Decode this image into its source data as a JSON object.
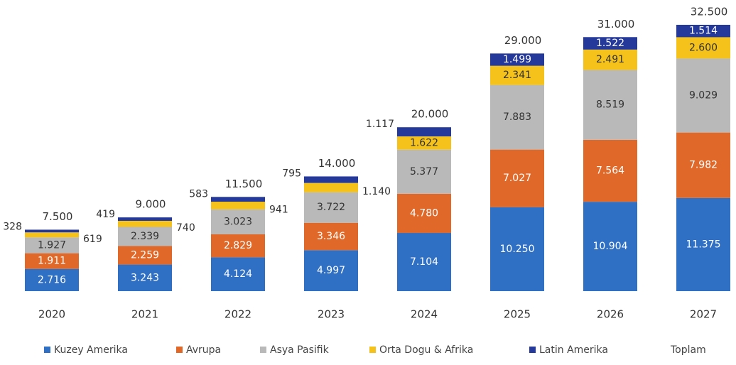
{
  "chart_data": {
    "type": "stacked_bar",
    "categories": [
      "2020",
      "2021",
      "2022",
      "2023",
      "2024",
      "2025",
      "2026",
      "2027"
    ],
    "series": [
      {
        "name": "Kuzey Amerika",
        "color": "#2f6fc4",
        "values": [
          2716,
          3243,
          4124,
          4997,
          7104,
          10250,
          10904,
          11375
        ],
        "value_labels": [
          "2.716",
          "3.243",
          "4.124",
          "4.997",
          "7.104",
          "10.250",
          "10.904",
          "11.375"
        ]
      },
      {
        "name": "Avrupa",
        "color": "#e0692a",
        "values": [
          1911,
          2259,
          2829,
          3346,
          4780,
          7027,
          7564,
          7982
        ],
        "value_labels": [
          "1.911",
          "2.259",
          "2.829",
          "3.346",
          "4.780",
          "7.027",
          "7.564",
          "7.982"
        ]
      },
      {
        "name": "Asya Pasifik",
        "color": "#b9b9b9",
        "values": [
          1927,
          2339,
          3023,
          3722,
          5377,
          7883,
          8519,
          9029
        ],
        "value_labels": [
          "1.927",
          "2.339",
          "3.023",
          "3.722",
          "5.377",
          "7.883",
          "8.519",
          "9.029"
        ]
      },
      {
        "name": "Orta Dogu & Afrika",
        "color": "#f4c21b",
        "values": [
          619,
          740,
          941,
          1140,
          1622,
          2341,
          2491,
          2600
        ],
        "value_labels": [
          "619",
          "740",
          "941",
          "1.140",
          "1.622",
          "2.341",
          "2.491",
          "2.600"
        ]
      },
      {
        "name": "Latin Amerika",
        "color": "#24399a",
        "values": [
          328,
          419,
          583,
          795,
          1117,
          1499,
          1522,
          1514
        ],
        "value_labels": [
          "328",
          "419",
          "583",
          "795",
          "1.117",
          "1.499",
          "1.522",
          "1.514"
        ]
      }
    ],
    "totals": {
      "name": "Toplam",
      "values": [
        7500,
        9000,
        11500,
        14000,
        20000,
        29000,
        31000,
        32500
      ],
      "value_labels": [
        "7.500",
        "9.000",
        "11.500",
        "14.000",
        "20.000",
        "29.000",
        "31.000",
        "32.500"
      ]
    }
  }
}
